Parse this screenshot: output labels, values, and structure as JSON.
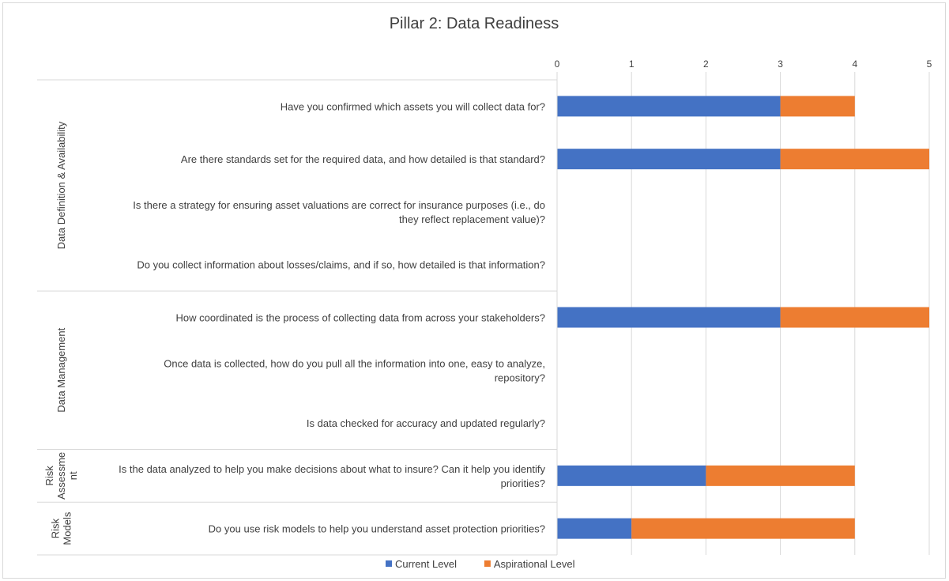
{
  "chart_data": {
    "type": "bar",
    "orientation": "horizontal",
    "stacked": true,
    "title": "Pillar 2: Data Readiness",
    "xlim": [
      0,
      5
    ],
    "x_ticks": [
      "0",
      "1",
      "2",
      "3",
      "4",
      "5"
    ],
    "grid": true,
    "legend_position": "bottom",
    "groups": [
      {
        "label": "Data Definition & Availability",
        "label_lines": [
          "Data Definition & Availability"
        ],
        "categories": [
          {
            "lines": [
              "Have you confirmed which assets you will collect data for?"
            ]
          },
          {
            "lines": [
              "Are there standards set for the required data, and how detailed is that standard?"
            ]
          },
          {
            "lines": [
              "Is there a strategy for ensuring asset valuations are correct for insurance purposes (i.e., do",
              "they reflect replacement value)?"
            ]
          },
          {
            "lines": [
              "Do you collect information about losses/claims, and if so, how detailed is that information?"
            ]
          }
        ]
      },
      {
        "label": "Data Management",
        "label_lines": [
          "Data Management"
        ],
        "categories": [
          {
            "lines": [
              "How coordinated is the process of collecting data from across your stakeholders?"
            ]
          },
          {
            "lines": [
              "Once data is collected, how do you pull all the information into one, easy to analyze,",
              "repository?"
            ]
          },
          {
            "lines": [
              "Is data checked for accuracy and updated regularly?"
            ]
          }
        ]
      },
      {
        "label": "Risk Assessment",
        "label_lines": [
          "Risk",
          "Assessme",
          "nt"
        ],
        "categories": [
          {
            "lines": [
              "Is the data analyzed to help you make decisions about what to insure? Can it help you identify",
              "priorities?"
            ]
          }
        ]
      },
      {
        "label": "Risk Models",
        "label_lines": [
          "Risk",
          "Models"
        ],
        "categories": [
          {
            "lines": [
              "Do you use risk models to help you understand asset protection priorities?"
            ]
          }
        ]
      }
    ],
    "series": [
      {
        "name": "Current Level",
        "color": "#4472c4",
        "values": [
          3,
          3,
          null,
          null,
          3,
          null,
          null,
          2,
          1
        ]
      },
      {
        "name": "Aspirational Level",
        "color": "#ed7d31",
        "values": [
          1,
          2,
          null,
          null,
          2,
          null,
          null,
          2,
          3
        ]
      }
    ]
  }
}
